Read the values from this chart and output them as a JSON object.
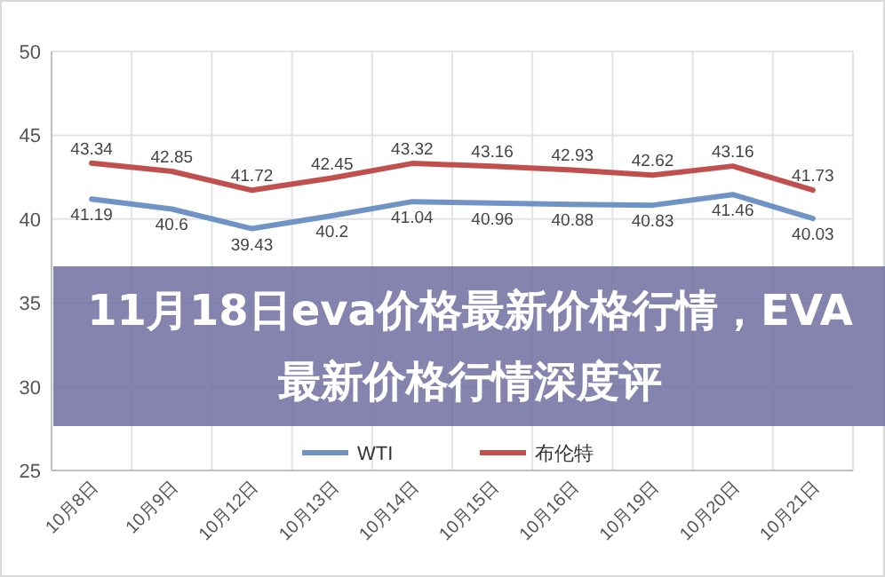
{
  "chart_data": {
    "type": "line",
    "title": "11月18日eva价格最新价格行情，EVA最新价格行情深度评",
    "categories": [
      "10月8日",
      "10月9日",
      "10月12日",
      "10月13日",
      "10月14日",
      "10月15日",
      "10月16日",
      "10月19日",
      "10月20日",
      "10月21日"
    ],
    "series": [
      {
        "name": "WTI",
        "color": "#6f93c4",
        "values": [
          41.19,
          40.6,
          39.43,
          40.2,
          41.04,
          40.96,
          40.88,
          40.83,
          41.46,
          40.03
        ]
      },
      {
        "name": "布伦特",
        "color": "#c0504d",
        "values": [
          43.34,
          42.85,
          41.72,
          42.45,
          43.32,
          43.16,
          42.93,
          42.62,
          43.16,
          41.73
        ]
      }
    ],
    "ylim": [
      25,
      50
    ],
    "yticks": [
      25,
      30,
      35,
      40,
      45,
      50
    ],
    "grid": true,
    "legend": "bottom",
    "data_labels": true,
    "marker": "none",
    "line_style": "solid"
  }
}
